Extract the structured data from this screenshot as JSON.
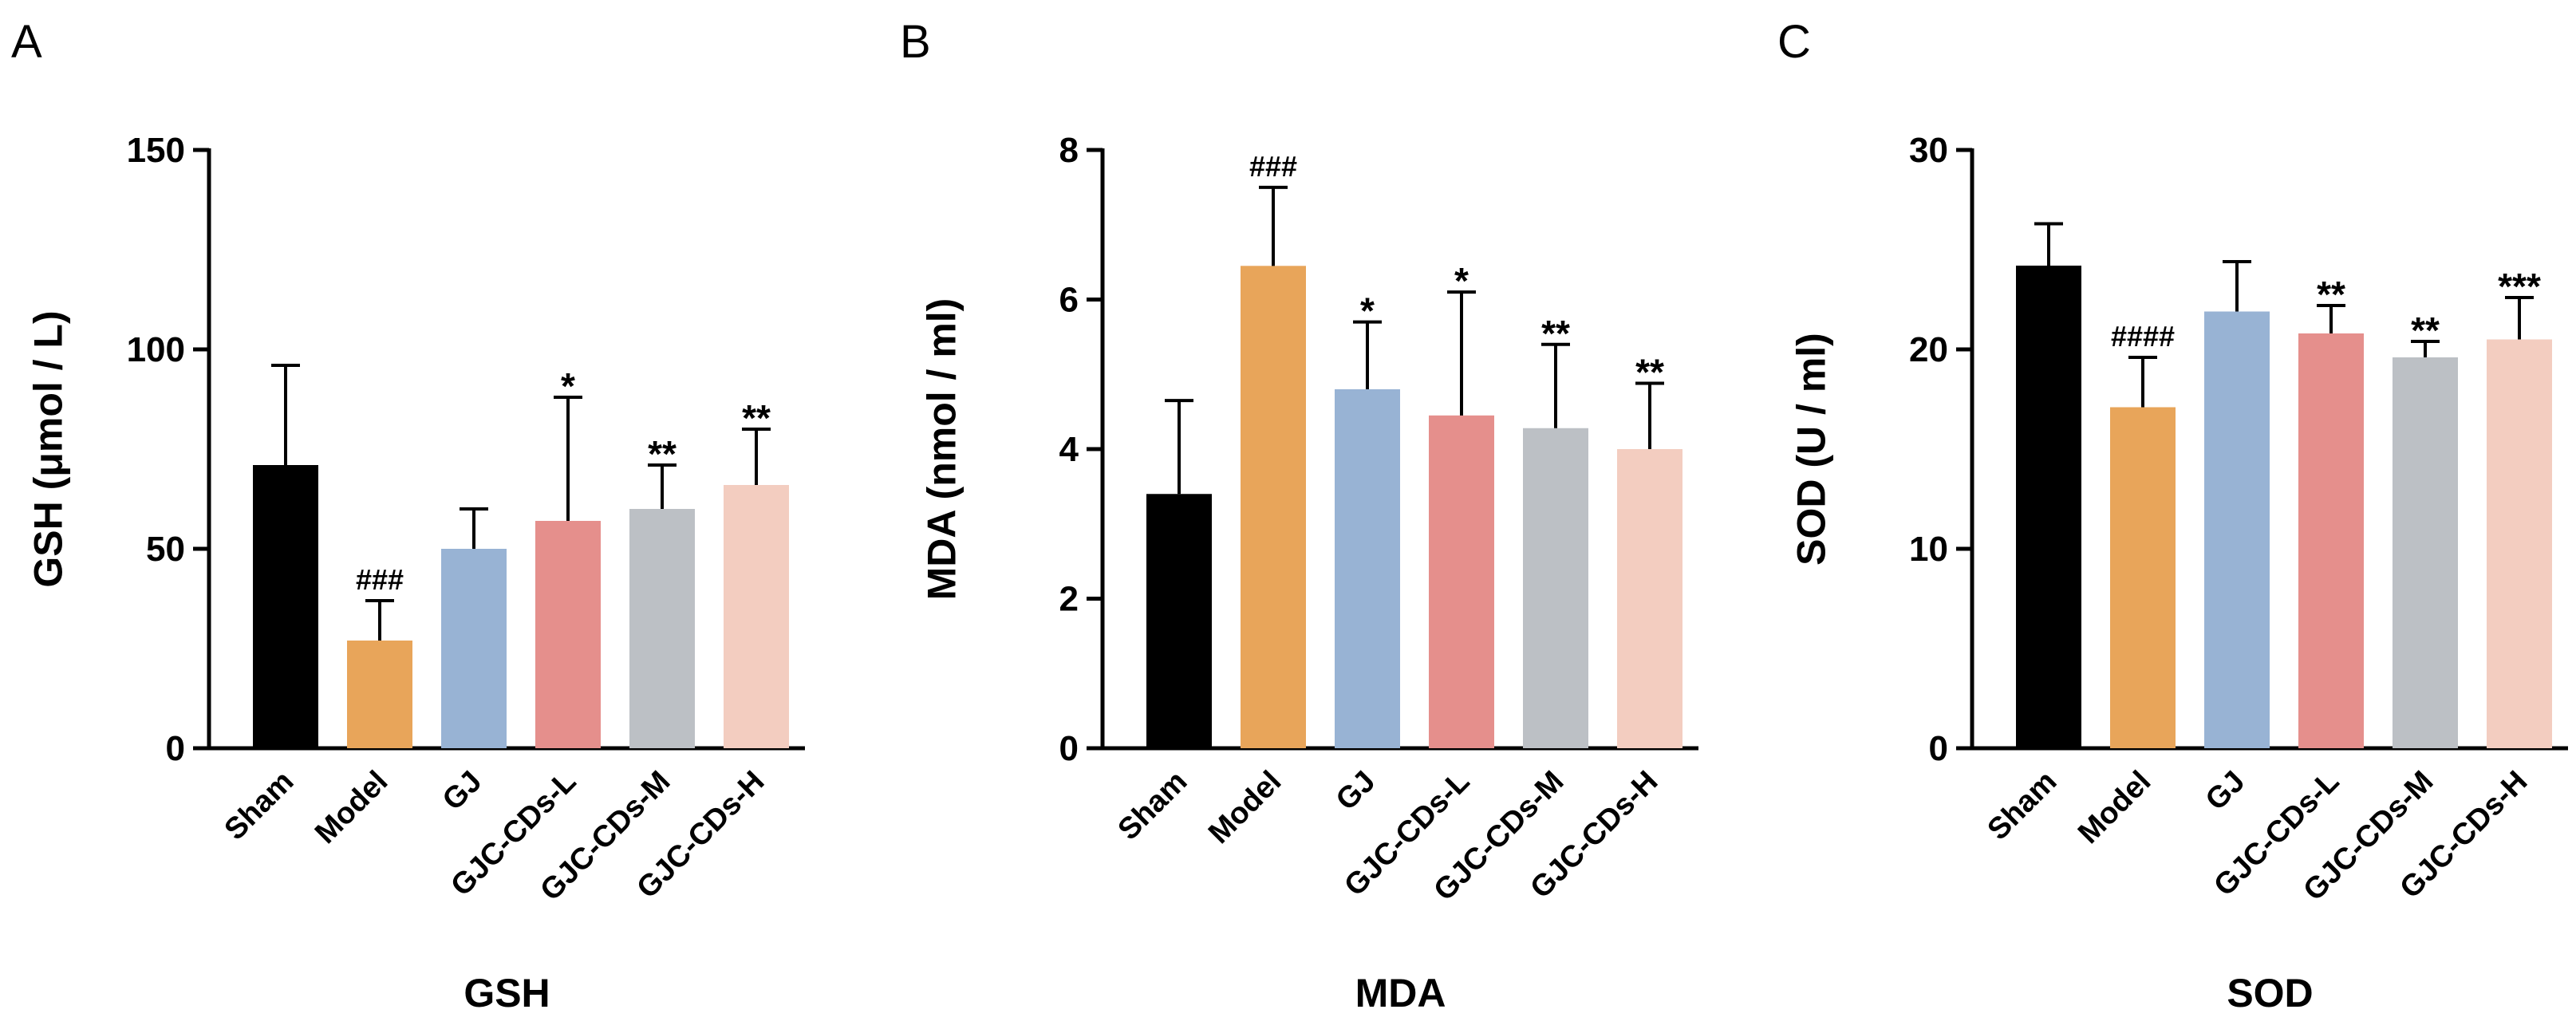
{
  "chart_data": [
    {
      "type": "bar",
      "panel_label": "A",
      "categories": [
        "Sham",
        "Model",
        "GJ",
        "GJC-CDs-L",
        "GJC-CDs-M",
        "GJC-CDs-H"
      ],
      "values": [
        71,
        27,
        50,
        57,
        60,
        66
      ],
      "error_upper": [
        96,
        37,
        60,
        88,
        71,
        80
      ],
      "annotations": [
        "",
        "###",
        "",
        "*",
        "**",
        "**"
      ],
      "colors": [
        "#000000",
        "#e8a55a",
        "#98b3d4",
        "#e58f8c",
        "#bcc0c5",
        "#f3cdc0"
      ],
      "ylabel": "GSH (μmol / L)",
      "xlabel": "GSH",
      "ylim": [
        0,
        150
      ],
      "yticks": [
        0,
        50,
        100,
        150
      ]
    },
    {
      "type": "bar",
      "panel_label": "B",
      "categories": [
        "Sham",
        "Model",
        "GJ",
        "GJC-CDs-L",
        "GJC-CDs-M",
        "GJC-CDs-H"
      ],
      "values": [
        3.4,
        6.45,
        4.8,
        4.45,
        4.28,
        4.0
      ],
      "error_upper": [
        4.65,
        7.5,
        5.7,
        6.1,
        5.4,
        4.88
      ],
      "annotations": [
        "",
        "###",
        "*",
        "*",
        "**",
        "**"
      ],
      "colors": [
        "#000000",
        "#e8a55a",
        "#98b3d4",
        "#e58f8c",
        "#bcc0c5",
        "#f3cdc0"
      ],
      "ylabel": "MDA (nmol / ml)",
      "xlabel": "MDA",
      "ylim": [
        0,
        8
      ],
      "yticks": [
        0,
        2,
        4,
        6,
        8
      ]
    },
    {
      "type": "bar",
      "panel_label": "C",
      "categories": [
        "Sham",
        "Model",
        "GJ",
        "GJC-CDs-L",
        "GJC-CDs-M",
        "GJC-CDs-H"
      ],
      "values": [
        24.2,
        17.1,
        21.9,
        20.8,
        19.6,
        20.5
      ],
      "error_upper": [
        26.3,
        19.6,
        24.4,
        22.2,
        20.4,
        22.6
      ],
      "annotations": [
        "",
        "####",
        "",
        "**",
        "**",
        "***"
      ],
      "colors": [
        "#000000",
        "#e8a55a",
        "#98b3d4",
        "#e58f8c",
        "#bcc0c5",
        "#f3cdc0"
      ],
      "ylabel": "SOD (U / ml)",
      "xlabel": "SOD",
      "ylim": [
        0,
        30
      ],
      "yticks": [
        0,
        10,
        20,
        30
      ]
    }
  ]
}
